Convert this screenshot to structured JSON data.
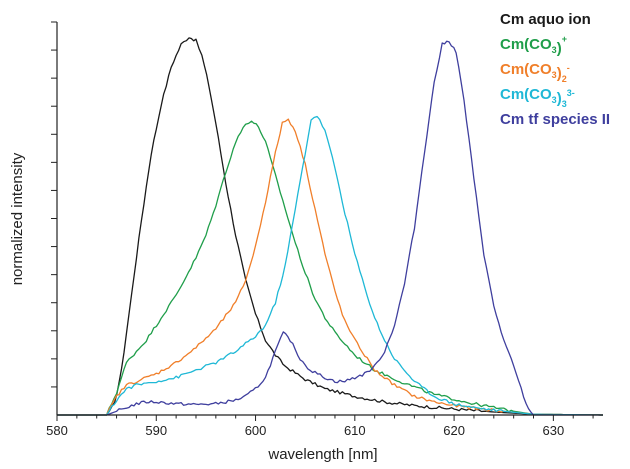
{
  "chart_data": {
    "type": "line",
    "xlabel": "wavelength [nm]",
    "ylabel": "normalized intensity",
    "xlim": [
      580,
      635
    ],
    "ylim": [
      0,
      1.05
    ],
    "x_ticks": [
      580,
      590,
      600,
      610,
      620,
      630
    ],
    "x_tick_labels": [
      "580",
      "590",
      "600",
      "610",
      "620",
      "630"
    ],
    "y_tick_count": 14,
    "y_tick_labels": false,
    "grid": false,
    "legend_position": "top-right",
    "series": [
      {
        "name": "Cm aquo ion",
        "legend": {
          "base": "Cm aquo ion",
          "parts": []
        },
        "color": "#1a1a1a",
        "x": [
          580,
          585,
          585.8,
          586.5,
          587.5,
          588.5,
          589.5,
          590.5,
          591.5,
          592.5,
          593.3,
          594,
          594.6,
          595.3,
          596,
          597,
          598,
          599,
          600,
          601,
          602,
          603,
          605,
          607,
          610,
          613,
          616,
          620,
          624,
          628,
          635
        ],
        "y": [
          0,
          0,
          0.03,
          0.12,
          0.32,
          0.52,
          0.7,
          0.83,
          0.93,
          0.99,
          1.01,
          1.0,
          0.96,
          0.88,
          0.78,
          0.62,
          0.48,
          0.36,
          0.27,
          0.2,
          0.16,
          0.13,
          0.095,
          0.07,
          0.05,
          0.035,
          0.025,
          0.016,
          0.008,
          0.002,
          0
        ]
      },
      {
        "name": "Cm(CO3)+",
        "legend": {
          "base": "Cm(CO",
          "parts": [
            {
              "sub": "3"
            },
            {
              "text": ")"
            },
            {
              "sup": "+"
            }
          ]
        },
        "color": "#1f9e4a",
        "x": [
          580,
          585,
          586,
          587,
          588,
          589,
          590,
          591,
          592,
          593,
          594,
          595,
          596,
          597,
          598,
          599,
          599.6,
          600.3,
          601,
          602,
          603,
          604,
          605,
          606,
          607,
          608,
          610,
          612,
          615,
          618,
          622,
          626,
          628,
          635
        ],
        "y": [
          0,
          0,
          0.06,
          0.14,
          0.17,
          0.2,
          0.24,
          0.28,
          0.32,
          0.37,
          0.42,
          0.48,
          0.56,
          0.65,
          0.73,
          0.78,
          0.785,
          0.77,
          0.73,
          0.64,
          0.55,
          0.46,
          0.38,
          0.31,
          0.26,
          0.22,
          0.16,
          0.12,
          0.085,
          0.055,
          0.03,
          0.01,
          0.002,
          0
        ]
      },
      {
        "name": "Cm(CO3)2-",
        "legend": {
          "base": "Cm(CO",
          "parts": [
            {
              "sub": "3"
            },
            {
              "text": ")"
            },
            {
              "sub": "2"
            },
            {
              "sup": "-"
            }
          ]
        },
        "color": "#f07f2a",
        "x": [
          580,
          585,
          586,
          587,
          588,
          590,
          592,
          594,
          596,
          598,
          599,
          600,
          601,
          602,
          602.7,
          603.3,
          604,
          605,
          606,
          607,
          608,
          609,
          610,
          611,
          612,
          614,
          616,
          618,
          620,
          622,
          625,
          628,
          635
        ],
        "y": [
          0,
          0,
          0.05,
          0.08,
          0.09,
          0.11,
          0.14,
          0.18,
          0.23,
          0.3,
          0.36,
          0.45,
          0.57,
          0.7,
          0.78,
          0.79,
          0.76,
          0.67,
          0.55,
          0.43,
          0.33,
          0.25,
          0.2,
          0.16,
          0.12,
          0.08,
          0.05,
          0.035,
          0.025,
          0.018,
          0.01,
          0.002,
          0
        ]
      },
      {
        "name": "Cm(CO3)3 3-",
        "legend": {
          "base": "Cm(CO",
          "parts": [
            {
              "sub": "3"
            },
            {
              "text": ")"
            },
            {
              "sub": "3"
            },
            {
              "sup": "3-"
            }
          ]
        },
        "color": "#1fb8d6",
        "x": [
          580,
          585,
          586,
          587,
          588,
          590,
          592,
          594,
          596,
          598,
          600,
          601,
          602,
          603,
          604,
          605,
          605.6,
          606.2,
          607,
          608,
          609,
          610,
          611,
          612,
          613,
          614,
          616,
          618,
          620,
          622,
          625,
          628,
          635
        ],
        "y": [
          0,
          0,
          0.04,
          0.07,
          0.08,
          0.09,
          0.1,
          0.12,
          0.14,
          0.17,
          0.21,
          0.24,
          0.3,
          0.4,
          0.55,
          0.7,
          0.79,
          0.8,
          0.76,
          0.66,
          0.54,
          0.43,
          0.34,
          0.26,
          0.2,
          0.15,
          0.09,
          0.05,
          0.03,
          0.02,
          0.01,
          0.002,
          0
        ]
      },
      {
        "name": "Cm tf species II",
        "legend": {
          "base": "Cm tf species II",
          "parts": []
        },
        "color": "#3f3f9e",
        "x": [
          580,
          585,
          586,
          587,
          588,
          589,
          590,
          592,
          594,
          596,
          598,
          599,
          600,
          601,
          602,
          602.8,
          603.5,
          604.5,
          605.5,
          607,
          608,
          609,
          610,
          611,
          612,
          613,
          614,
          615,
          616,
          617,
          618,
          618.8,
          619.5,
          620.2,
          621,
          622,
          623,
          624,
          625,
          626,
          627,
          627.5,
          628,
          635
        ],
        "y": [
          0,
          0,
          0.01,
          0.02,
          0.03,
          0.035,
          0.035,
          0.03,
          0.028,
          0.03,
          0.04,
          0.05,
          0.07,
          0.1,
          0.17,
          0.22,
          0.2,
          0.15,
          0.12,
          0.1,
          0.09,
          0.09,
          0.1,
          0.11,
          0.13,
          0.17,
          0.24,
          0.35,
          0.5,
          0.7,
          0.89,
          0.99,
          1.0,
          0.97,
          0.84,
          0.63,
          0.43,
          0.29,
          0.2,
          0.13,
          0.05,
          0.015,
          0,
          0
        ]
      }
    ]
  }
}
